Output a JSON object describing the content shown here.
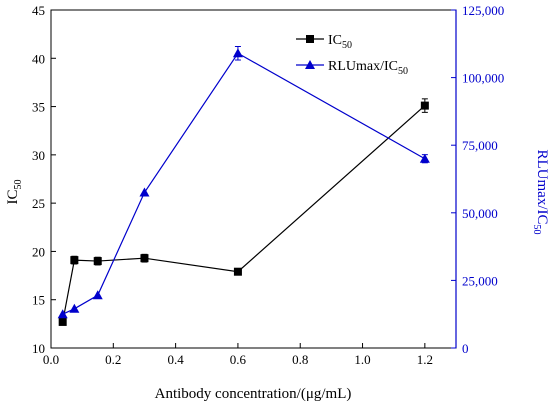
{
  "chart_data": {
    "type": "line",
    "xlabel": "Antibody concentration/(μg/mL)",
    "ylabel_left_main": "IC",
    "ylabel_left_sub": "50",
    "ylabel_right_main": "RLUmax/IC",
    "ylabel_right_sub": "50",
    "xlim": [
      0.0,
      1.3
    ],
    "ylim_left": [
      10,
      45
    ],
    "ylim_right": [
      0,
      125000
    ],
    "x_ticks": [
      0.0,
      0.2,
      0.4,
      0.6,
      0.8,
      1.0,
      1.2
    ],
    "x_tick_labels": [
      "0.0",
      "0.2",
      "0.4",
      "0.6",
      "0.8",
      "1.0",
      "1.2"
    ],
    "y_left_ticks": [
      10,
      15,
      20,
      25,
      30,
      35,
      40,
      45
    ],
    "y_left_tick_labels": [
      "10",
      "15",
      "20",
      "25",
      "30",
      "35",
      "40",
      "45"
    ],
    "y_right_ticks": [
      0,
      25000,
      50000,
      75000,
      100000,
      125000
    ],
    "y_right_tick_labels": [
      "0",
      "25,000",
      "50,000",
      "75,000",
      "100,000",
      "125,000"
    ],
    "legend_position": "top-right",
    "series": [
      {
        "name_main": "IC",
        "name_sub": "50",
        "axis": "left",
        "marker": "square",
        "color": "#000000",
        "x": [
          0.0375,
          0.075,
          0.15,
          0.3,
          0.6,
          1.2
        ],
        "y": [
          12.7,
          19.1,
          19.0,
          19.3,
          17.9,
          35.1
        ],
        "err": [
          0.0,
          0.4,
          0.4,
          0.4,
          0.0,
          0.7
        ]
      },
      {
        "name_main": "RLUmax/IC",
        "name_sub": "50",
        "axis": "right",
        "marker": "triangle",
        "color": "#0000cc",
        "x": [
          0.0375,
          0.075,
          0.15,
          0.3,
          0.6,
          1.2
        ],
        "y": [
          12500,
          14500,
          19500,
          57500,
          109000,
          70000
        ],
        "err": [
          0,
          0,
          0,
          0,
          2500,
          1500
        ]
      }
    ]
  }
}
